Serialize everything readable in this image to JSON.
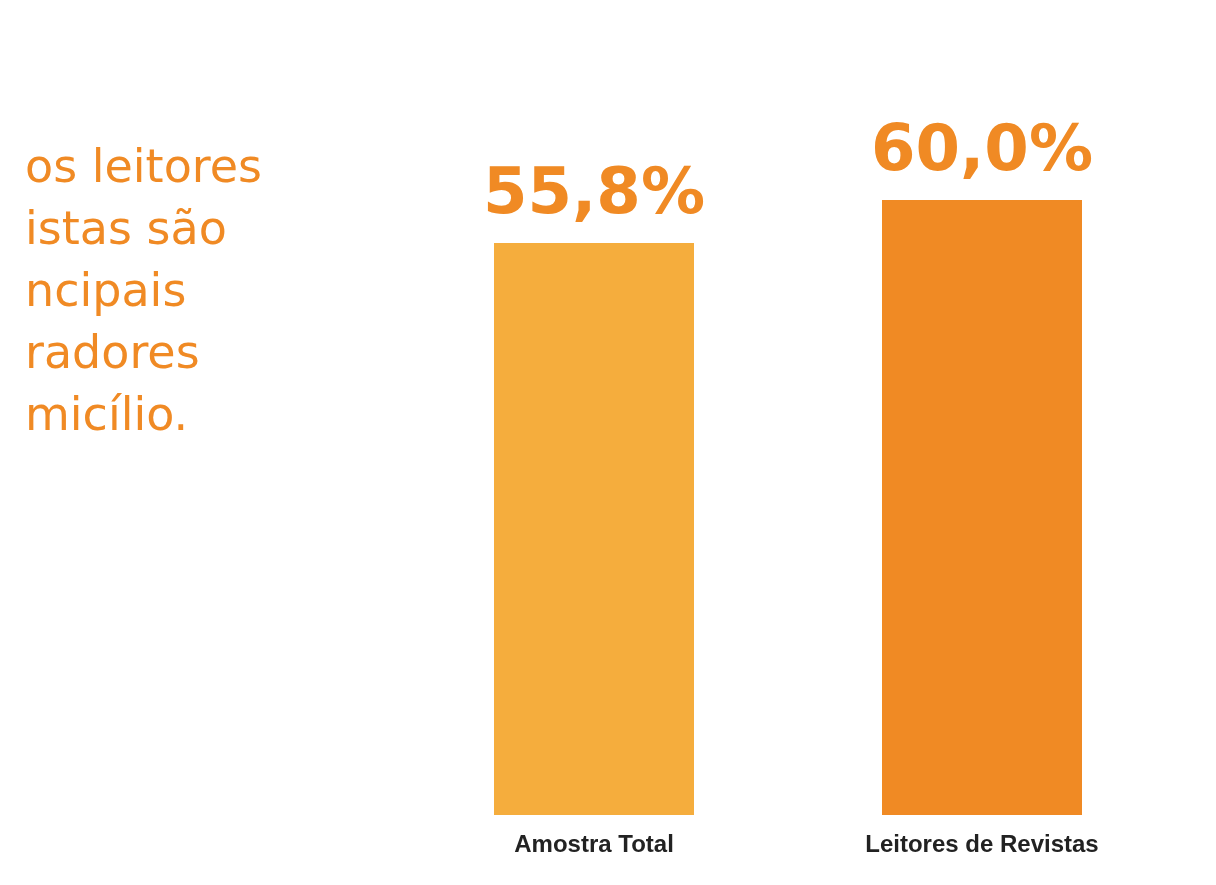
{
  "chart_data": {
    "type": "bar",
    "title": "os leitores\nistas são\nncipais\nradores\nmicílio.",
    "categories": [
      "Amostra Total",
      "Leitores de Revistas"
    ],
    "values": [
      55.8,
      60.0
    ],
    "colors": [
      "#f5ad3d",
      "#f08a24"
    ],
    "value_labels": [
      "55,8%",
      "60,0%"
    ],
    "grid": false
  }
}
